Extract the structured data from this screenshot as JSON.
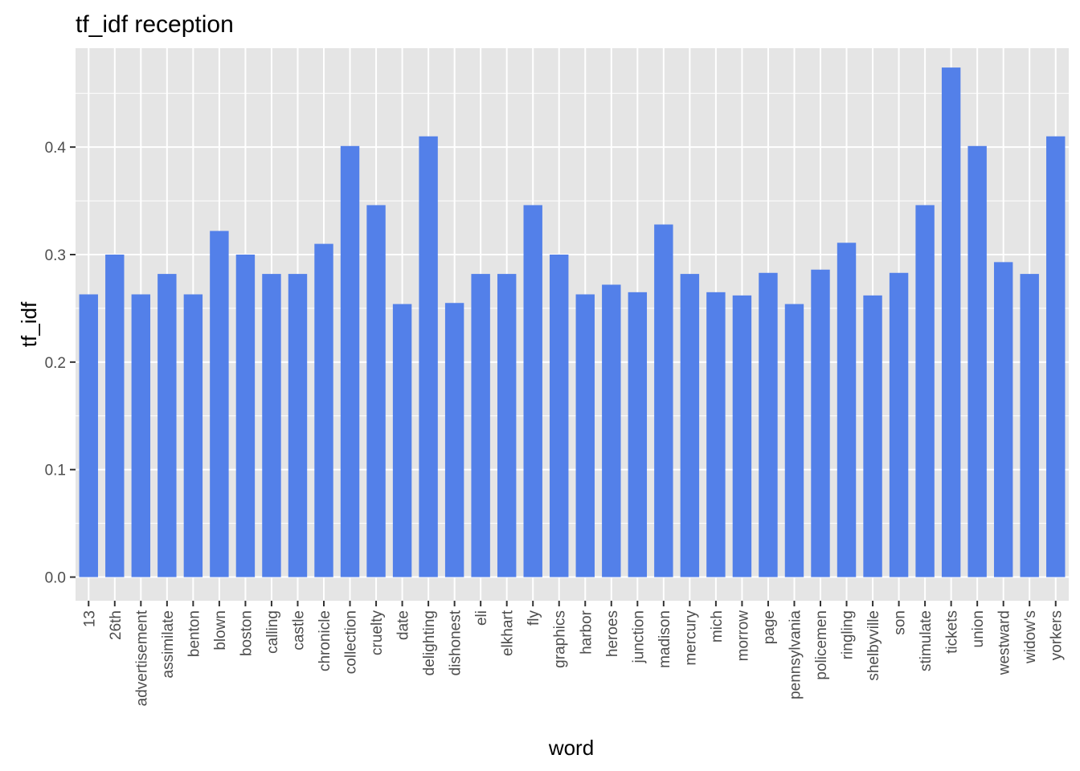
{
  "chart_data": {
    "type": "bar",
    "title": "tf_idf reception",
    "xlabel": "word",
    "ylabel": "tf_idf",
    "ylim": [
      -0.022,
      0.492
    ],
    "yticks": [
      "0.0",
      "0.1",
      "0.2",
      "0.3",
      "0.4"
    ],
    "grid": true,
    "legend": "none",
    "bar_color": "#5380e9",
    "panel_color": "#e5e5e5",
    "grid_color": "#ffffff",
    "categories": [
      "13",
      "26th",
      "advertisement",
      "assimilate",
      "benton",
      "blown",
      "boston",
      "calling",
      "castle",
      "chronicle",
      "collection",
      "cruelty",
      "date",
      "delighting",
      "dishonest",
      "eli",
      "elkhart",
      "fly",
      "graphics",
      "harbor",
      "heroes",
      "junction",
      "madison",
      "mercury",
      "mich",
      "morrow",
      "page",
      "pennsylvania",
      "policemen",
      "ringling",
      "shelbyville",
      "son",
      "stimulate",
      "tickets",
      "union",
      "westward",
      "widow's",
      "yorkers"
    ],
    "values": [
      0.263,
      0.3,
      0.263,
      0.282,
      0.263,
      0.322,
      0.3,
      0.282,
      0.282,
      0.31,
      0.401,
      0.346,
      0.254,
      0.41,
      0.255,
      0.282,
      0.282,
      0.346,
      0.3,
      0.263,
      0.272,
      0.265,
      0.328,
      0.282,
      0.265,
      0.262,
      0.283,
      0.254,
      0.286,
      0.311,
      0.262,
      0.283,
      0.346,
      0.474,
      0.401,
      0.293,
      0.282,
      0.41
    ]
  }
}
